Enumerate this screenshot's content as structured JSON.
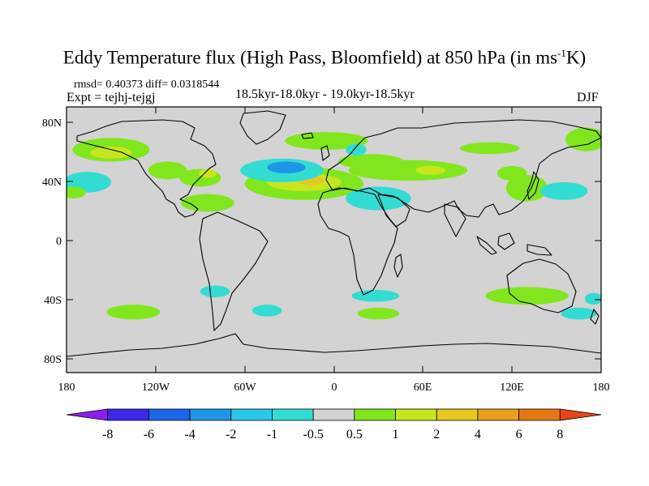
{
  "title": {
    "main": "Eddy Temperature flux (High Pass, Bloomfield) at 850 hPa (in ms",
    "exponent": "-1",
    "suffix": "K)"
  },
  "stats": "rmsd= 0.40373 diff= 0.0318544",
  "experiment": "Expt = tejhj-tejgj",
  "period": "18.5kyr-18.0kyr - 19.0kyr-18.5kyr",
  "season": "DJF",
  "map": {
    "projection": "cylindrical-equidistant",
    "lon_range": [
      -180,
      180
    ],
    "lat_range": [
      -90,
      90
    ],
    "lat_labels": [
      "80N",
      "40N",
      "0",
      "40S",
      "80S"
    ],
    "lon_labels": [
      "180",
      "120W",
      "60W",
      "0",
      "60E",
      "120E",
      "180"
    ],
    "background_color": "#d3d3d3",
    "coastline_color": "#000000"
  },
  "colorbar": {
    "labels": [
      "-8",
      "-6",
      "-4",
      "-2",
      "-1",
      "-0.5",
      "0.5",
      "1",
      "2",
      "4",
      "6",
      "8"
    ],
    "colors": [
      "#8c1ef0",
      "#3c28e6",
      "#1e64e6",
      "#1e96e6",
      "#28c8e6",
      "#32dcd2",
      "#d3d3d3",
      "#82e61e",
      "#c8e61e",
      "#e6c81e",
      "#e6a01e",
      "#e67814",
      "#e64614"
    ]
  },
  "anomalies": [
    {
      "lon": -150,
      "lat": 61,
      "rlon": 26,
      "rlat": 8,
      "color": "#82e61e"
    },
    {
      "lon": -150,
      "lat": 59,
      "rlon": 14,
      "rlat": 4,
      "color": "#c8e61e"
    },
    {
      "lon": -166,
      "lat": 39,
      "rlon": 16,
      "rlat": 7,
      "color": "#32dcd2"
    },
    {
      "lon": -112,
      "lat": 47,
      "rlon": 13,
      "rlat": 6,
      "color": "#82e61e"
    },
    {
      "lon": -90,
      "lat": 42,
      "rlon": 14,
      "rlat": 6,
      "color": "#82e61e"
    },
    {
      "lon": -85,
      "lat": 45,
      "rlon": 6,
      "rlat": 3,
      "color": "#c8e61e"
    },
    {
      "lon": -85,
      "lat": 25,
      "rlon": 18,
      "rlat": 6,
      "color": "#82e61e"
    },
    {
      "lon": -20,
      "lat": 38,
      "rlon": 40,
      "rlat": 11,
      "color": "#82e61e"
    },
    {
      "lon": -20,
      "lat": 39,
      "rlon": 25,
      "rlat": 6,
      "color": "#c8e61e"
    },
    {
      "lon": -15,
      "lat": 40,
      "rlon": 9,
      "rlat": 3,
      "color": "#e6c81e"
    },
    {
      "lon": -35,
      "lat": 47,
      "rlon": 28,
      "rlat": 8,
      "color": "#32dcd2"
    },
    {
      "lon": -32,
      "lat": 49,
      "rlon": 13,
      "rlat": 4,
      "color": "#1e96e6"
    },
    {
      "lon": -5,
      "lat": 67,
      "rlon": 28,
      "rlat": 6,
      "color": "#82e61e"
    },
    {
      "lon": 25,
      "lat": 53,
      "rlon": 22,
      "rlat": 5,
      "color": "#82e61e"
    },
    {
      "lon": 15,
      "lat": 61,
      "rlon": 7,
      "rlat": 4,
      "color": "#32dcd2"
    },
    {
      "lon": 50,
      "lat": 47,
      "rlon": 40,
      "rlat": 7,
      "color": "#82e61e"
    },
    {
      "lon": 65,
      "lat": 47,
      "rlon": 10,
      "rlat": 3,
      "color": "#c8e61e"
    },
    {
      "lon": 30,
      "lat": 28,
      "rlon": 22,
      "rlat": 8,
      "color": "#32dcd2"
    },
    {
      "lon": 105,
      "lat": 62,
      "rlon": 20,
      "rlat": 4,
      "color": "#82e61e"
    },
    {
      "lon": 120,
      "lat": 45,
      "rlon": 10,
      "rlat": 5,
      "color": "#82e61e"
    },
    {
      "lon": 130,
      "lat": 35,
      "rlon": 14,
      "rlat": 9,
      "color": "#82e61e"
    },
    {
      "lon": 170,
      "lat": 68,
      "rlon": 14,
      "rlat": 8,
      "color": "#82e61e"
    },
    {
      "lon": 155,
      "lat": 33,
      "rlon": 16,
      "rlat": 6,
      "color": "#32dcd2"
    },
    {
      "lon": -175,
      "lat": 32,
      "rlon": 8,
      "rlat": 4,
      "color": "#82e61e"
    },
    {
      "lon": 130,
      "lat": -38,
      "rlon": 28,
      "rlat": 6,
      "color": "#82e61e"
    },
    {
      "lon": 28,
      "lat": -38,
      "rlon": 16,
      "rlat": 4,
      "color": "#32dcd2"
    },
    {
      "lon": -80,
      "lat": -35,
      "rlon": 10,
      "rlat": 4,
      "color": "#32dcd2"
    },
    {
      "lon": -135,
      "lat": -49,
      "rlon": 18,
      "rlat": 5,
      "color": "#82e61e"
    },
    {
      "lon": -45,
      "lat": -48,
      "rlon": 10,
      "rlat": 4,
      "color": "#32dcd2"
    },
    {
      "lon": 30,
      "lat": -50,
      "rlon": 14,
      "rlat": 4,
      "color": "#82e61e"
    },
    {
      "lon": 165,
      "lat": -50,
      "rlon": 12,
      "rlat": 4,
      "color": "#32dcd2"
    },
    {
      "lon": 175,
      "lat": -40,
      "rlon": 6,
      "rlat": 4,
      "color": "#32dcd2"
    }
  ]
}
